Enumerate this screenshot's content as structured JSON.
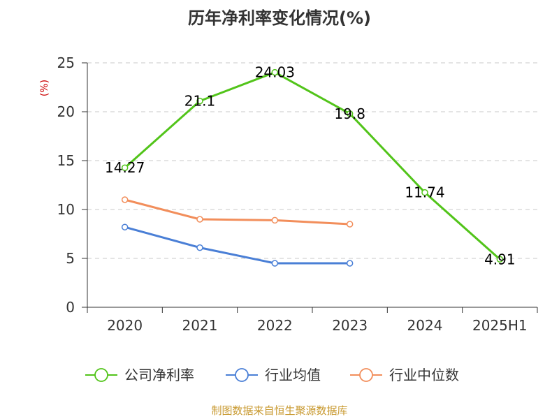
{
  "chart_data": {
    "type": "line",
    "title": "历年净利率变化情况(%)",
    "ylabel": "(%)",
    "xlabel": "",
    "categories": [
      "2020",
      "2021",
      "2022",
      "2023",
      "2024",
      "2025H1"
    ],
    "ylim": [
      0,
      25
    ],
    "yticks": [
      0,
      5,
      10,
      15,
      20,
      25
    ],
    "grid": true,
    "legend_position": "bottom",
    "series": [
      {
        "name": "公司净利率",
        "color": "#52c41a",
        "values": [
          14.27,
          21.1,
          24.03,
          19.8,
          11.74,
          4.91
        ],
        "labels": [
          "14.27",
          "21.1",
          "24.03",
          "19.8",
          "11.74",
          "4.91"
        ],
        "show_labels": true
      },
      {
        "name": "行业均值",
        "color": "#4a7fd6",
        "values": [
          8.2,
          6.1,
          4.5,
          4.5,
          null,
          null
        ],
        "show_labels": false
      },
      {
        "name": "行业中位数",
        "color": "#f28e5b",
        "values": [
          11.0,
          9.0,
          8.9,
          8.5,
          null,
          null
        ],
        "show_labels": false
      }
    ]
  },
  "footer": {
    "source": "制图数据来自恒生聚源数据库"
  }
}
